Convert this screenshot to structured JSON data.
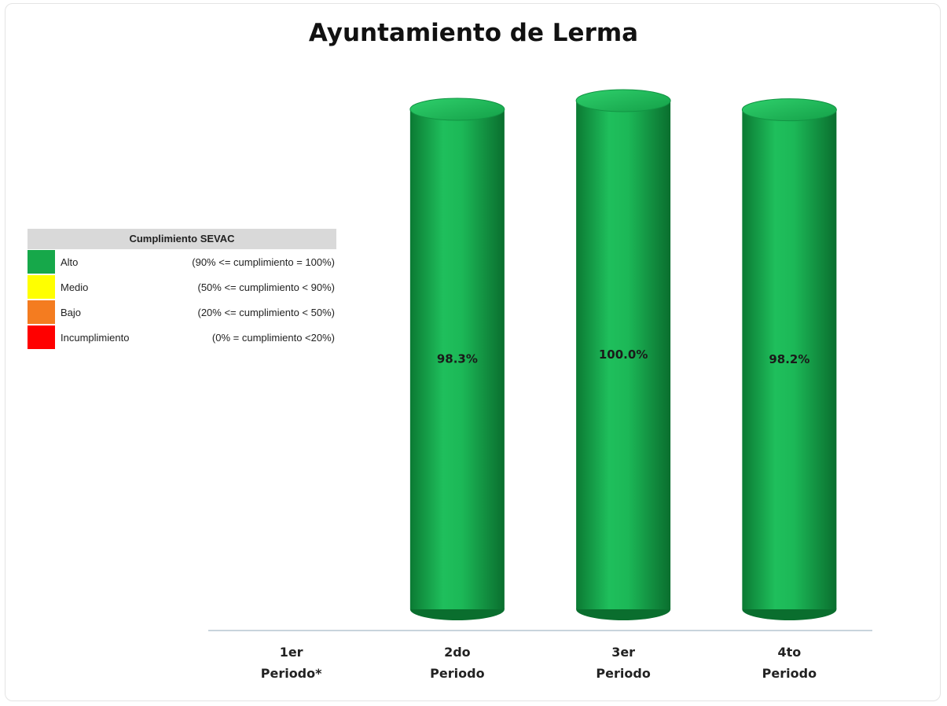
{
  "chart_data": {
    "type": "cylinder-bar",
    "title": "Ayuntamiento de Lerma",
    "categories": [
      "1er Periodo*",
      "2do Periodo",
      "3er Periodo",
      "4to Periodo"
    ],
    "values": [
      null,
      98.3,
      100.0,
      98.2
    ],
    "value_labels": [
      null,
      "98.3%",
      "100.0%",
      "98.2%"
    ],
    "color": "#16a84a",
    "ylim": [
      0,
      100
    ],
    "legend_table": {
      "title": "Cumplimiento SEVAC",
      "rows": [
        {
          "color": "#16a84a",
          "label": "Alto",
          "range": "(90% <= cumplimiento = 100%)"
        },
        {
          "color": "#ffff00",
          "label": "Medio",
          "range": "(50% <= cumplimiento < 90%)"
        },
        {
          "color": "#f47c20",
          "label": "Bajo",
          "range": "(20% <= cumplimiento < 50%)"
        },
        {
          "color": "#ff0000",
          "label": "Incumplimiento",
          "range": "(0% = cumplimiento <20%)"
        }
      ]
    }
  }
}
